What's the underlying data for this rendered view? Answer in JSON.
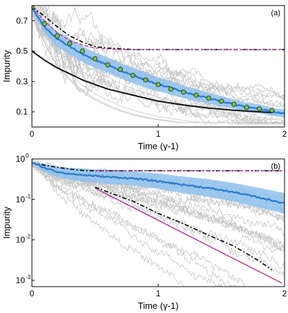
{
  "chart_data": [
    {
      "type": "line",
      "panel_label": "(a)",
      "xlabel": "Time (γ-1)",
      "ylabel": "Impurity",
      "xlim": [
        0,
        2
      ],
      "ylim": [
        0,
        0.8
      ],
      "yscale": "linear",
      "xticks": [
        0,
        1,
        2
      ],
      "xtick_labels": [
        "0",
        "1",
        "2"
      ],
      "yticks": [
        0.1,
        0.3,
        0.5,
        0.7
      ],
      "ytick_labels": [
        "0.1",
        "0.3",
        "0.5",
        "0.7"
      ],
      "colors": {
        "trajectories": "#c4c4c4",
        "mean": "#2f7fd0",
        "band": "#8fc1ee",
        "markers": "#6fc24a",
        "dashdot": "#000000",
        "dashed": "#b0409a",
        "solid": "#111111"
      },
      "series": [
        {
          "style": "mean",
          "x": [
            0,
            0.05,
            0.1,
            0.15,
            0.2,
            0.3,
            0.4,
            0.5,
            0.6,
            0.7,
            0.8,
            0.9,
            1.0,
            1.1,
            1.2,
            1.3,
            1.4,
            1.5,
            1.6,
            1.7,
            1.8,
            1.9,
            2.0
          ],
          "y": [
            0.79,
            0.72,
            0.66,
            0.62,
            0.58,
            0.53,
            0.48,
            0.44,
            0.41,
            0.37,
            0.34,
            0.31,
            0.28,
            0.26,
            0.23,
            0.21,
            0.19,
            0.17,
            0.15,
            0.13,
            0.12,
            0.1,
            0.09
          ],
          "band_halfwidth": [
            0.0,
            0.03,
            0.04,
            0.045,
            0.05,
            0.05,
            0.05,
            0.05,
            0.05,
            0.05,
            0.05,
            0.05,
            0.045,
            0.045,
            0.04,
            0.04,
            0.035,
            0.035,
            0.03,
            0.03,
            0.03,
            0.025,
            0.025
          ]
        },
        {
          "style": "markers",
          "x": [
            0,
            0.1,
            0.2,
            0.3,
            0.4,
            0.5,
            0.6,
            0.7,
            0.8,
            0.9,
            1.0,
            1.1,
            1.2,
            1.3,
            1.4,
            1.5,
            1.6,
            1.7,
            1.8,
            1.9
          ],
          "y": [
            0.79,
            0.68,
            0.6,
            0.55,
            0.5,
            0.45,
            0.41,
            0.38,
            0.34,
            0.31,
            0.28,
            0.25,
            0.23,
            0.21,
            0.19,
            0.17,
            0.15,
            0.13,
            0.12,
            0.11
          ]
        },
        {
          "style": "dashdot",
          "x": [
            0,
            0.1,
            0.2,
            0.3,
            0.4,
            0.5,
            0.6,
            0.7,
            0.8,
            1.0,
            1.5,
            2.0
          ],
          "y": [
            0.79,
            0.73,
            0.66,
            0.6,
            0.56,
            0.53,
            0.52,
            0.515,
            0.51,
            0.51,
            0.51,
            0.51
          ]
        },
        {
          "style": "dashed",
          "x": [
            0,
            0.1,
            0.2,
            0.3,
            0.4,
            0.5,
            0.6,
            0.7,
            0.8,
            1.0,
            1.5,
            2.0
          ],
          "y": [
            0.79,
            0.7,
            0.62,
            0.57,
            0.54,
            0.52,
            0.515,
            0.51,
            0.51,
            0.51,
            0.51,
            0.51
          ]
        },
        {
          "style": "solid",
          "x": [
            0,
            0.1,
            0.2,
            0.3,
            0.4,
            0.5,
            0.6,
            0.8,
            1.0,
            1.2,
            1.4,
            1.6,
            1.8,
            1.9
          ],
          "y": [
            0.5,
            0.44,
            0.39,
            0.35,
            0.31,
            0.28,
            0.25,
            0.21,
            0.17,
            0.145,
            0.125,
            0.11,
            0.1,
            0.095
          ]
        }
      ]
    },
    {
      "type": "line",
      "panel_label": "(b)",
      "xlabel": "Time (γ-1)",
      "ylabel": "Impurity",
      "xlim": [
        0,
        2
      ],
      "ylim": [
        0.0007,
        1.0
      ],
      "yscale": "log",
      "xticks": [
        0,
        1,
        2
      ],
      "xtick_labels": [
        "0",
        "1",
        "2"
      ],
      "yticks": [
        1,
        0.1,
        0.01,
        0.001
      ],
      "ytick_labels": [
        "10",
        "10",
        "10",
        "10"
      ],
      "ytick_exponents": [
        "0",
        "-1",
        "-2",
        "-3"
      ],
      "series": [
        {
          "style": "mean",
          "x": [
            0,
            0.1,
            0.2,
            0.3,
            0.4,
            0.5,
            0.6,
            0.8,
            1.0,
            1.2,
            1.4,
            1.6,
            1.8,
            2.0
          ],
          "y": [
            0.8,
            0.6,
            0.48,
            0.43,
            0.4,
            0.38,
            0.36,
            0.33,
            0.28,
            0.23,
            0.19,
            0.15,
            0.11,
            0.08
          ],
          "band_factor": [
            1.0,
            1.25,
            1.35,
            1.4,
            1.45,
            1.45,
            1.5,
            1.5,
            1.55,
            1.6,
            1.65,
            1.7,
            1.75,
            1.8
          ]
        },
        {
          "style": "dashdot",
          "x": [
            0,
            0.1,
            0.2,
            0.3,
            0.4,
            0.5,
            2.0
          ],
          "y": [
            0.8,
            0.7,
            0.62,
            0.56,
            0.52,
            0.51,
            0.51
          ]
        },
        {
          "style": "dashdot",
          "x": [
            0.5,
            0.8,
            1.0,
            1.2,
            1.4,
            1.6,
            1.8,
            1.9
          ],
          "y": [
            0.2,
            0.09,
            0.045,
            0.025,
            0.013,
            0.007,
            0.003,
            0.0018
          ]
        },
        {
          "style": "dashed",
          "x": [
            0.5,
            1.0,
            1.5,
            2.0
          ],
          "y": [
            0.515,
            0.51,
            0.51,
            0.51
          ]
        },
        {
          "style": "solid-magenta",
          "x": [
            0.5,
            1.98
          ],
          "y": [
            0.19,
            0.00085
          ]
        }
      ]
    }
  ]
}
